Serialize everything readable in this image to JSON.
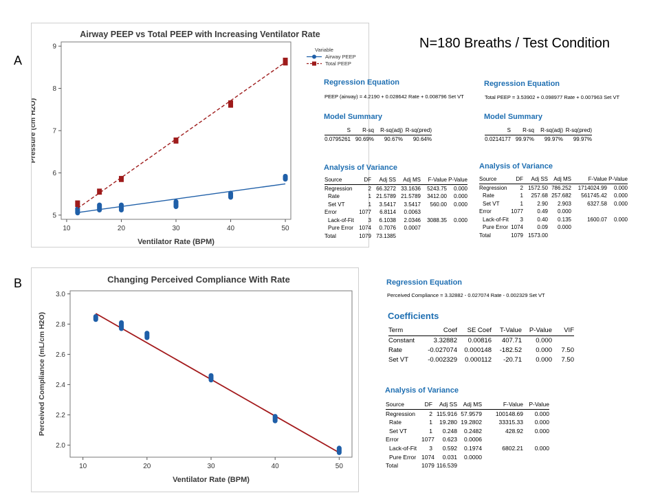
{
  "panels": {
    "a": "A",
    "b": "B"
  },
  "n_label": "N=180 Breaths / Test Condition",
  "chart_data": [
    {
      "type": "line",
      "title": "Airway PEEP vs Total PEEP with Increasing Ventilator Rate",
      "xlabel": "Ventilator Rate (BPM)",
      "ylabel": "Pressure (cm H2O)",
      "xlim": [
        9,
        51
      ],
      "ylim": [
        4.9,
        9.1
      ],
      "xticks": [
        10,
        20,
        30,
        40,
        50
      ],
      "yticks": [
        5,
        6,
        7,
        8,
        9
      ],
      "legend_title": "Variable",
      "legend_position": "top-right",
      "series": [
        {
          "name": "Airway PEEP",
          "color": "#1f5fa8",
          "marker": "circle",
          "line": "solid",
          "x": [
            12,
            16,
            20,
            30,
            40,
            50
          ],
          "values": [
            [
              5.05,
              5.15
            ],
            [
              5.12,
              5.24
            ],
            [
              5.12,
              5.24
            ],
            [
              5.2,
              5.32
            ],
            [
              5.42,
              5.52
            ],
            [
              5.85,
              5.92
            ]
          ],
          "fit": [
            [
              12,
              5.06
            ],
            [
              50,
              5.74
            ]
          ]
        },
        {
          "name": "Total PEEP",
          "color": "#9e1b1b",
          "marker": "square",
          "line": "dashed",
          "x": [
            12,
            16,
            20,
            30,
            40,
            50
          ],
          "values": [
            [
              5.25,
              5.29
            ],
            [
              5.54,
              5.57
            ],
            [
              5.84,
              5.87
            ],
            [
              6.75,
              6.78
            ],
            [
              7.6,
              7.66
            ],
            [
              8.6,
              8.67
            ]
          ],
          "fit": [
            [
              12,
              5.16
            ],
            [
              50,
              8.62
            ]
          ]
        }
      ]
    },
    {
      "type": "scatter",
      "title": "Changing Perceived Compliance With Rate",
      "xlabel": "Ventilator Rate (BPM)",
      "ylabel": "Perceived Compliance (mL/cm H2O)",
      "xlim": [
        8,
        52
      ],
      "ylim": [
        1.92,
        3.02
      ],
      "xticks": [
        10,
        20,
        30,
        40,
        50
      ],
      "yticks": [
        2.0,
        2.2,
        2.4,
        2.6,
        2.8,
        3.0
      ],
      "series": [
        {
          "name": "",
          "color": "#1f5fa8",
          "marker": "circle",
          "x": [
            12,
            16,
            20,
            30,
            40,
            50
          ],
          "values": [
            [
              2.83,
              2.85
            ],
            [
              2.77,
              2.81
            ],
            [
              2.71,
              2.74
            ],
            [
              2.43,
              2.46
            ],
            [
              2.16,
              2.19
            ],
            [
              1.95,
              1.98
            ]
          ],
          "fit": [
            [
              12,
              2.87
            ],
            [
              50,
              1.95
            ]
          ],
          "fit_color": "#a3191b"
        }
      ]
    }
  ],
  "stats_a_left": {
    "reg_title": "Regression Equation",
    "equation": "PEEP (airway) = 4.2190 + 0.028642 Rate + 0.008796 Set VT",
    "model_title": "Model Summary",
    "model_headers": [
      "S",
      "R-sq",
      "R-sq(adj)",
      "R-sq(pred)"
    ],
    "model_values": [
      "0.0795261",
      "90.69%",
      "90.67%",
      "90.64%"
    ],
    "anova_title": "Analysis of Variance",
    "anova_headers": [
      "Source",
      "DF",
      "Adj SS",
      "Adj MS",
      "F-Value",
      "P-Value"
    ],
    "anova_rows": [
      [
        "Regression",
        "2",
        "66.3272",
        "33.1636",
        "5243.75",
        "0.000"
      ],
      [
        "Rate",
        "1",
        "21.5789",
        "21.5789",
        "3412.00",
        "0.000"
      ],
      [
        "Set VT",
        "1",
        "3.5417",
        "3.5417",
        "560.00",
        "0.000"
      ],
      [
        "Error",
        "1077",
        "6.8114",
        "0.0063",
        "",
        ""
      ],
      [
        "Lack-of-Fit",
        "3",
        "6.1038",
        "2.0346",
        "3088.35",
        "0.000"
      ],
      [
        "Pure Error",
        "1074",
        "0.7076",
        "0.0007",
        "",
        ""
      ],
      [
        "Total",
        "1079",
        "73.1385",
        "",
        "",
        ""
      ]
    ]
  },
  "stats_a_right": {
    "reg_title": "Regression Equation",
    "equation": "Total PEEP = 3.53902 + 0.098977 Rate + 0.007963 Set VT",
    "model_title": "Model Summary",
    "model_headers": [
      "S",
      "R-sq",
      "R-sq(adj)",
      "R-sq(pred)"
    ],
    "model_values": [
      "0.0214177",
      "99.97%",
      "99.97%",
      "99.97%"
    ],
    "anova_title": "Analysis of Variance",
    "anova_headers": [
      "Source",
      "DF",
      "Adj SS",
      "Adj MS",
      "F-Value",
      "P-Value"
    ],
    "anova_rows": [
      [
        "Regression",
        "2",
        "1572.50",
        "786.252",
        "1714024.99",
        "0.000"
      ],
      [
        "Rate",
        "1",
        "257.68",
        "257.682",
        "561745.42",
        "0.000"
      ],
      [
        "Set VT",
        "1",
        "2.90",
        "2.903",
        "6327.58",
        "0.000"
      ],
      [
        "Error",
        "1077",
        "0.49",
        "0.000",
        "",
        ""
      ],
      [
        "Lack-of-Fit",
        "3",
        "0.40",
        "0.135",
        "1600.07",
        "0.000"
      ],
      [
        "Pure Error",
        "1074",
        "0.09",
        "0.000",
        "",
        ""
      ],
      [
        "Total",
        "1079",
        "1573.00",
        "",
        "",
        ""
      ]
    ]
  },
  "stats_b": {
    "reg_title": "Regression Equation",
    "equation": "Perceived Compliance = 3.32882 - 0.027074 Rate - 0.002329 Set VT",
    "coef_title": "Coefficients",
    "coef_headers": [
      "Term",
      "Coef",
      "SE Coef",
      "T-Value",
      "P-Value",
      "VIF"
    ],
    "coef_rows": [
      [
        "Constant",
        "3.32882",
        "0.00816",
        "407.71",
        "0.000",
        ""
      ],
      [
        "Rate",
        "-0.027074",
        "0.000148",
        "-182.52",
        "0.000",
        "7.50"
      ],
      [
        "Set VT",
        "-0.002329",
        "0.000112",
        "-20.71",
        "0.000",
        "7.50"
      ]
    ],
    "anova_title": "Analysis of Variance",
    "anova_headers": [
      "Source",
      "DF",
      "Adj SS",
      "Adj MS",
      "F-Value",
      "P-Value"
    ],
    "anova_rows": [
      [
        "Regression",
        "2",
        "115.916",
        "57.9579",
        "100148.69",
        "0.000"
      ],
      [
        "Rate",
        "1",
        "19.280",
        "19.2802",
        "33315.33",
        "0.000"
      ],
      [
        "Set VT",
        "1",
        "0.248",
        "0.2482",
        "428.92",
        "0.000"
      ],
      [
        "Error",
        "1077",
        "0.623",
        "0.0006",
        "",
        ""
      ],
      [
        "Lack-of-Fit",
        "3",
        "0.592",
        "0.1974",
        "6802.21",
        "0.000"
      ],
      [
        "Pure Error",
        "1074",
        "0.031",
        "0.0000",
        "",
        ""
      ],
      [
        "Total",
        "1079",
        "116.539",
        "",
        "",
        ""
      ]
    ]
  }
}
